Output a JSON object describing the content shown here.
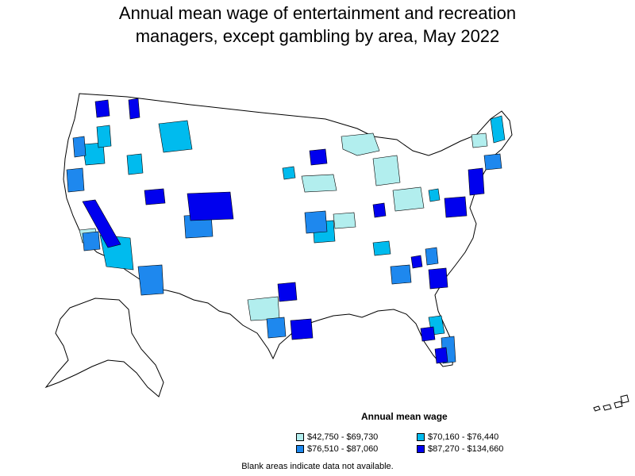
{
  "title": {
    "line1": "Annual mean wage of entertainment and recreation",
    "line2": "managers, except gambling by area, May 2022"
  },
  "legend": {
    "title": "Annual mean wage",
    "items": [
      {
        "label": "$42,750 - $69,730",
        "color": "#b2eeee"
      },
      {
        "label": "$70,160 - $76,440",
        "color": "#00bbee"
      },
      {
        "label": "$76,510 - $87,060",
        "color": "#1e88ee"
      },
      {
        "label": "$87,270 - $134,660",
        "color": "#0000ee"
      }
    ]
  },
  "footnote": "Blank areas indicate data not available.",
  "colors": {
    "outline": "#000000",
    "blank": "#ffffff"
  }
}
